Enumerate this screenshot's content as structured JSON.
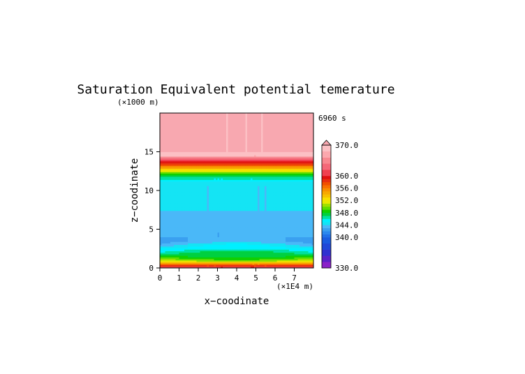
{
  "chart_data": {
    "type": "heatmap",
    "title": "Saturation Equivalent potential temerature",
    "time_label": "6960 s",
    "xlabel": "x−coodinate",
    "ylabel": "z−coodinate",
    "x_unit": "(×1E4 m)",
    "y_unit": "(×1000 m)",
    "xlim": [
      0,
      8
    ],
    "ylim": [
      0,
      20
    ],
    "x_ticks": [
      "0",
      "1",
      "2",
      "3",
      "4",
      "5",
      "6",
      "7"
    ],
    "y_ticks": [
      "0",
      "5",
      "10",
      "15"
    ],
    "colorbar": {
      "labels": [
        "330.0",
        "340.0",
        "344.0",
        "348.0",
        "352.0",
        "356.0",
        "360.0",
        "370.0"
      ],
      "levels": [
        330,
        332,
        334,
        336,
        338,
        340,
        341,
        342,
        343,
        344,
        345,
        346,
        347,
        348,
        349,
        350,
        351,
        352,
        353,
        354,
        355,
        356,
        357,
        358,
        359,
        360,
        362,
        364,
        366,
        368,
        370
      ],
      "colors": [
        "#8a20c8",
        "#5a20c8",
        "#3030d0",
        "#2048d8",
        "#1a5ce0",
        "#2070e8",
        "#2a88ee",
        "#3aa0f0",
        "#4ab8f8",
        "#14e4f4",
        "#00f0ff",
        "#00e0a0",
        "#00d040",
        "#10d000",
        "#60dc00",
        "#a0e000",
        "#e8e800",
        "#f8e000",
        "#f8c000",
        "#f8a800",
        "#f89000",
        "#f87000",
        "#f05000",
        "#e83010",
        "#e01010",
        "#f04050",
        "#f46878",
        "#f88890",
        "#fca8ae",
        "#fcc0c4",
        "#f8a8b0"
      ]
    },
    "field_summary": "sample values by height (km) and x (1E4 m)",
    "x": [
      0,
      0.25,
      0.5,
      0.75,
      1,
      1.25,
      1.5,
      1.75,
      2,
      2.25,
      2.5,
      2.75,
      3,
      3.25,
      3.5,
      3.75,
      4,
      4.25,
      4.5,
      4.75,
      5,
      5.25,
      5.5,
      5.75,
      6,
      6.25,
      6.5,
      6.75,
      7,
      7.25,
      7.5,
      7.75,
      8
    ],
    "z": [
      0,
      0.5,
      1,
      1.5,
      2,
      2.5,
      3,
      3.5,
      4,
      4.5,
      5,
      5.5,
      6,
      6.5,
      7,
      7.5,
      8,
      8.5,
      9,
      9.5,
      10,
      10.5,
      11,
      11.5,
      12,
      12.5,
      13,
      13.5,
      14,
      14.5,
      15,
      15.5,
      16,
      16.5,
      17,
      17.5,
      18,
      18.5,
      19,
      19.5,
      20
    ],
    "profile_center": [
      361,
      356,
      349,
      347.5,
      348,
      346,
      345.5,
      343.5,
      343,
      343,
      343,
      343,
      343,
      343,
      343.5,
      344,
      344,
      344,
      344,
      344,
      344,
      344,
      344.5,
      346,
      348,
      351,
      355,
      358.5,
      362,
      368,
      370,
      370,
      370,
      370,
      370,
      370,
      370,
      370,
      370,
      370,
      370
    ],
    "profile_edge": [
      361,
      356,
      351,
      348.5,
      346,
      345,
      343,
      342.5,
      343,
      343,
      344,
      344,
      344,
      344,
      344,
      344,
      344,
      344,
      344,
      344,
      344,
      344,
      344.5,
      346,
      348,
      351,
      355,
      358.5,
      362,
      368,
      370,
      370,
      370,
      370,
      370,
      370,
      370,
      370,
      370,
      370,
      370
    ]
  }
}
